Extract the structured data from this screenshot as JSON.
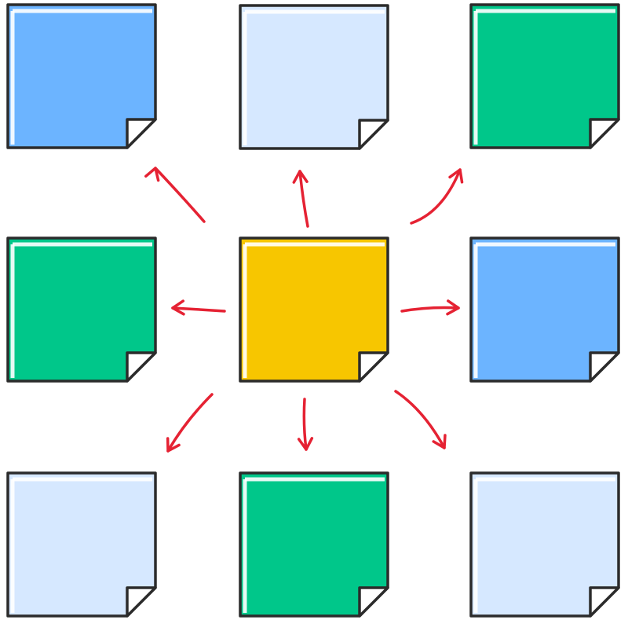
{
  "diagram": {
    "center_note": {
      "color": "#F7C600",
      "icon": "sticky-note-icon"
    },
    "surrounding_notes": [
      {
        "position": "top-left",
        "color": "#6CB4FF",
        "icon": "sticky-note-icon"
      },
      {
        "position": "top-center",
        "color": "#D6E8FF",
        "icon": "sticky-note-icon"
      },
      {
        "position": "top-right",
        "color": "#00C78A",
        "icon": "sticky-note-icon"
      },
      {
        "position": "middle-left",
        "color": "#00C78A",
        "icon": "sticky-note-icon"
      },
      {
        "position": "middle-right",
        "color": "#6CB4FF",
        "icon": "sticky-note-icon"
      },
      {
        "position": "bottom-left",
        "color": "#D6E8FF",
        "icon": "sticky-note-icon"
      },
      {
        "position": "bottom-center",
        "color": "#00C78A",
        "icon": "sticky-note-icon"
      },
      {
        "position": "bottom-right",
        "color": "#D6E8FF",
        "icon": "sticky-note-icon"
      }
    ],
    "arrow_color": "#E52233",
    "outline_color": "#2B2B2B"
  }
}
